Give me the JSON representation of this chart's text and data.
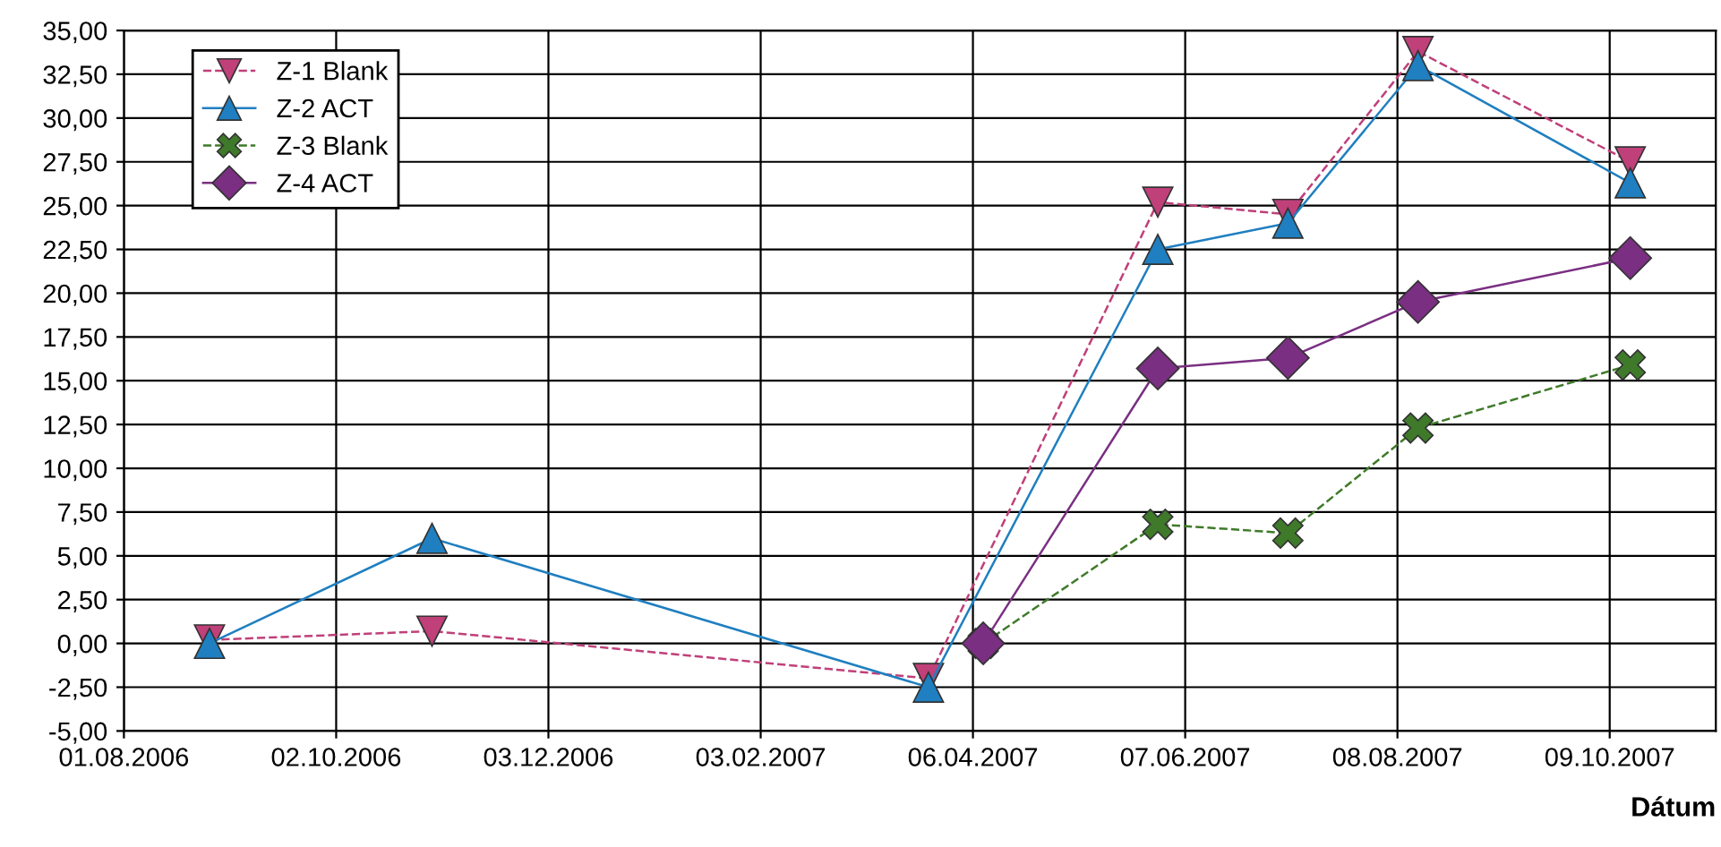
{
  "chart_data": {
    "type": "line",
    "xlabel": "Dátum",
    "x": [
      "2006-08-26",
      "2006-10-30",
      "2007-03-24",
      "2007-05-30",
      "2007-07-07",
      "2007-08-14",
      "2007-10-15"
    ],
    "series": [
      {
        "name": "Z-1 Blank",
        "color": "#c0407a",
        "line_style": "dashed",
        "marker": "triangle_down",
        "values": [
          0.2,
          0.7,
          -2.0,
          25.2,
          24.5,
          33.8,
          27.5
        ]
      },
      {
        "name": "Z-2 ACT",
        "color": "#1f7fc0",
        "line_style": "solid",
        "marker": "triangle",
        "values": [
          0.0,
          6.0,
          -2.5,
          22.5,
          24.0,
          33.0,
          26.3
        ]
      },
      {
        "name": "Z-3 Blank",
        "color": "#3f7a2a",
        "line_style": "dashed",
        "marker": "cross",
        "x": [
          "2007-04-09",
          "2007-05-30",
          "2007-07-07",
          "2007-08-14",
          "2007-10-15"
        ],
        "values": [
          0.0,
          6.8,
          6.3,
          12.3,
          15.9
        ]
      },
      {
        "name": "Z-4 ACT",
        "color": "#7a2f82",
        "line_style": "solid",
        "marker": "diamond",
        "x": [
          "2007-04-09",
          "2007-05-30",
          "2007-07-07",
          "2007-08-14",
          "2007-10-15"
        ],
        "values": [
          0.0,
          15.7,
          16.3,
          19.5,
          22.0
        ]
      }
    ],
    "xlim": [
      "2006-08-01",
      "2007-11-09"
    ],
    "xticks": [
      {
        "value": "2006-08-01",
        "label": "01.08.2006"
      },
      {
        "value": "2006-10-02",
        "label": "02.10.2006"
      },
      {
        "value": "2006-12-03",
        "label": "03.12.2006"
      },
      {
        "value": "2007-02-03",
        "label": "03.02.2007"
      },
      {
        "value": "2007-04-06",
        "label": "06.04.2007"
      },
      {
        "value": "2007-06-07",
        "label": "07.06.2007"
      },
      {
        "value": "2007-08-08",
        "label": "08.08.2007"
      },
      {
        "value": "2007-10-09",
        "label": "09.10.2007"
      }
    ],
    "ylim": [
      -5,
      35
    ],
    "yticks": [
      {
        "value": -5,
        "label": "-5,00"
      },
      {
        "value": -2.5,
        "label": "-2,50"
      },
      {
        "value": 0,
        "label": "0,00"
      },
      {
        "value": 2.5,
        "label": "2,50"
      },
      {
        "value": 5,
        "label": "5,00"
      },
      {
        "value": 7.5,
        "label": "7,50"
      },
      {
        "value": 10,
        "label": "10,00"
      },
      {
        "value": 12.5,
        "label": "12,50"
      },
      {
        "value": 15,
        "label": "15,00"
      },
      {
        "value": 17.5,
        "label": "17,50"
      },
      {
        "value": 20,
        "label": "20,00"
      },
      {
        "value": 22.5,
        "label": "22,50"
      },
      {
        "value": 25,
        "label": "25,00"
      },
      {
        "value": 27.5,
        "label": "27,50"
      },
      {
        "value": 30,
        "label": "30,00"
      },
      {
        "value": 32.5,
        "label": "32,50"
      },
      {
        "value": 35,
        "label": "35,00"
      }
    ],
    "grid": true,
    "legend": "top left"
  }
}
